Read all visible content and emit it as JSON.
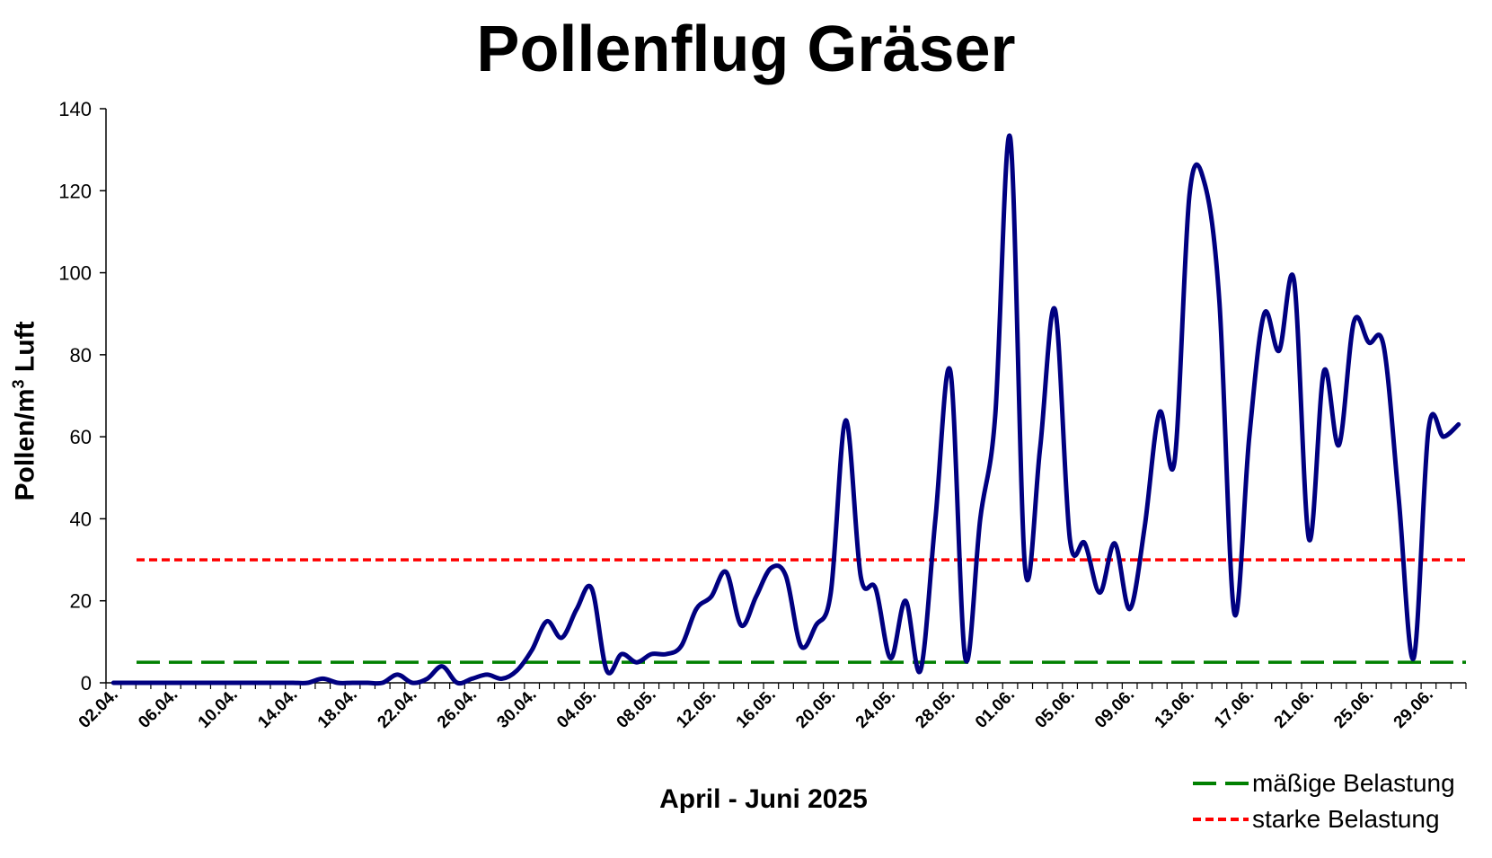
{
  "chart_data": {
    "type": "line",
    "title": "Pollenflug Gräser",
    "xlabel": "April - Juni 2025",
    "ylabel_main": "Pollen/m",
    "ylabel_sup": "3",
    "ylabel_tail": " Luft",
    "ylim": [
      0,
      140
    ],
    "yticks": [
      0,
      20,
      40,
      60,
      80,
      100,
      120,
      140
    ],
    "grid": false,
    "legend_position": "bottom-right",
    "xtick_labels": [
      "02.04.",
      "06.04.",
      "10.04.",
      "14.04.",
      "18.04.",
      "22.04.",
      "26.04.",
      "30.04.",
      "04.05.",
      "08.05.",
      "12.05.",
      "16.05.",
      "20.05.",
      "24.05.",
      "28.05.",
      "01.06.",
      "05.06.",
      "09.06.",
      "13.06.",
      "17.06.",
      "21.06.",
      "25.06.",
      "29.06."
    ],
    "series": [
      {
        "color": "#000080",
        "values": [
          0,
          0,
          0,
          0,
          0,
          0,
          0,
          0,
          0,
          0,
          0,
          0,
          0,
          0,
          1,
          0,
          0,
          0,
          0,
          2,
          0,
          1,
          4,
          0,
          1,
          2,
          1,
          3,
          8,
          15,
          11,
          18,
          23,
          3,
          7,
          5,
          7,
          7,
          9,
          18,
          21,
          27,
          14,
          21,
          28,
          26,
          9,
          14,
          22,
          64,
          26,
          23,
          6,
          20,
          3,
          40,
          76,
          6,
          40,
          65,
          133,
          28,
          57,
          91,
          35,
          34,
          22,
          34,
          18,
          38,
          66,
          54,
          119,
          122,
          93,
          17,
          60,
          90,
          81,
          98,
          35,
          76,
          58,
          88,
          83,
          82,
          45,
          6,
          62,
          60,
          63
        ]
      }
    ],
    "thresholds": [
      {
        "name": "mäßige Belastung",
        "value": 5,
        "color": "#008000",
        "dash": "long"
      },
      {
        "name": "starke Belastung",
        "value": 30,
        "color": "#ff0000",
        "dash": "short"
      }
    ]
  }
}
